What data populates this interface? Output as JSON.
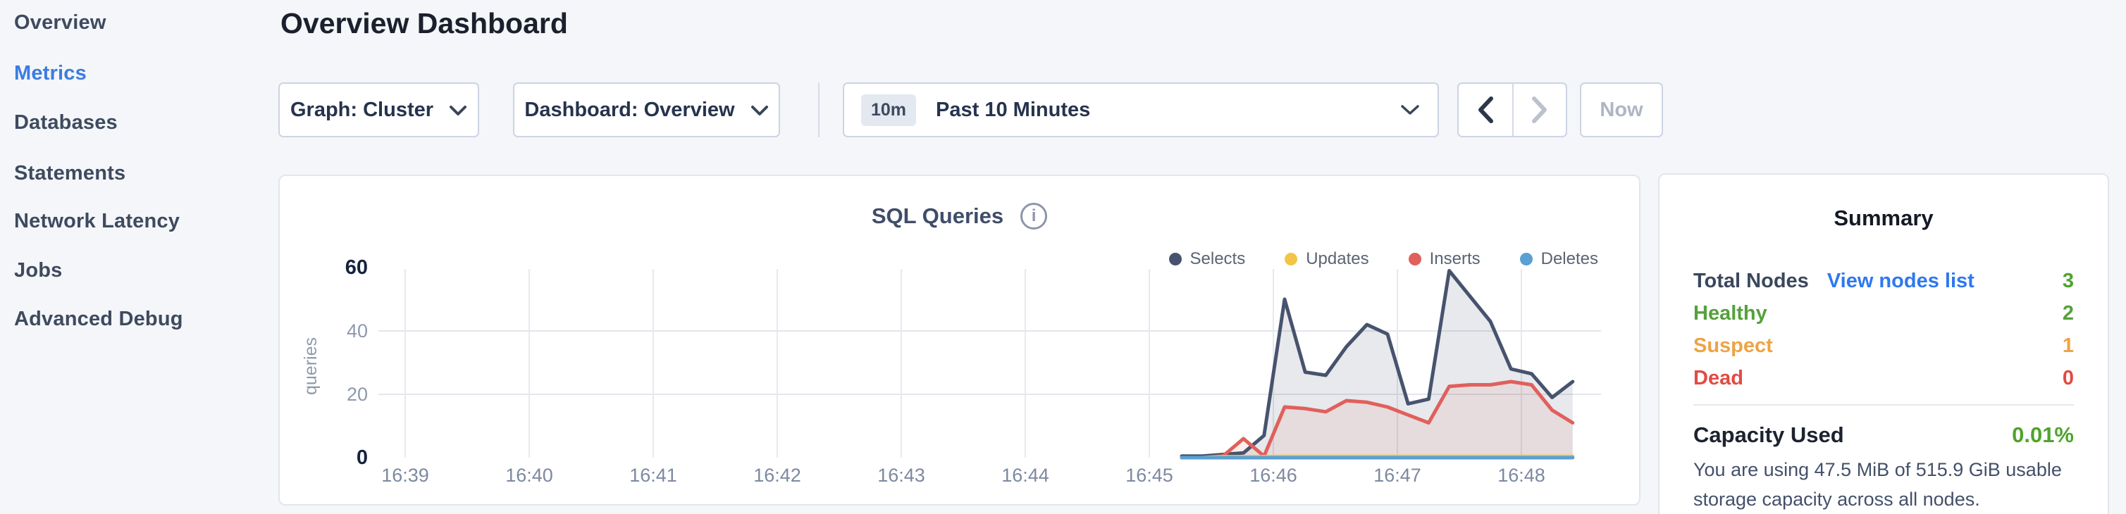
{
  "sidebar": {
    "items": [
      "Overview",
      "Metrics",
      "Databases",
      "Statements",
      "Network Latency",
      "Jobs",
      "Advanced Debug"
    ],
    "active": "Metrics"
  },
  "header": {
    "title": "Overview Dashboard"
  },
  "controls": {
    "graph_selector": "Graph: Cluster",
    "dashboard_selector": "Dashboard: Overview",
    "range_badge": "10m",
    "range_label": "Past 10 Minutes",
    "now_label": "Now"
  },
  "chart_data": {
    "type": "line",
    "title": "SQL Queries",
    "ylabel": "queries",
    "ylim": [
      0,
      60
    ],
    "yticks": [
      0,
      20,
      40,
      60
    ],
    "x_tick_labels": [
      "16:39",
      "16:40",
      "16:41",
      "16:42",
      "16:43",
      "16:44",
      "16:45",
      "16:46",
      "16:47",
      "16:48"
    ],
    "sample_interval_seconds": 10,
    "first_sample_time": "16:45:20",
    "grid": true,
    "legend_position": "top-right",
    "series": [
      {
        "name": "Selects",
        "color": "#47536e",
        "fill": "rgba(71,83,110,0.13)",
        "values": [
          0.5,
          0.5,
          1,
          1.5,
          7,
          50,
          27,
          26,
          35,
          42,
          39,
          17,
          18.5,
          59,
          51,
          43,
          28,
          26.5,
          19,
          24
        ]
      },
      {
        "name": "Updates",
        "color": "#f2c546",
        "fill": "none",
        "values": [
          0,
          0,
          0.3,
          0.3,
          0.3,
          0.4,
          0.4,
          0.4,
          0.4,
          0.4,
          0.4,
          0.4,
          0.4,
          0.4,
          0.4,
          0.4,
          0.4,
          0.4,
          0.4,
          0.4
        ]
      },
      {
        "name": "Inserts",
        "color": "#e0605c",
        "fill": "rgba(224,96,92,0.10)",
        "values": [
          0,
          0,
          0.5,
          6,
          0.5,
          16,
          15.5,
          14.5,
          18,
          17.5,
          16,
          13.5,
          11,
          22.5,
          23,
          23,
          24,
          23,
          15,
          11
        ]
      },
      {
        "name": "Deletes",
        "color": "#59a0d4",
        "fill": "none",
        "values": [
          0,
          0,
          0,
          0,
          0,
          0,
          0,
          0,
          0,
          0,
          0,
          0,
          0,
          0,
          0,
          0,
          0,
          0,
          0,
          0
        ]
      }
    ],
    "legend_order": [
      "Selects",
      "Updates",
      "Inserts",
      "Deletes"
    ]
  },
  "summary": {
    "title": "Summary",
    "rows": [
      {
        "label": "Total Nodes",
        "link": "View nodes list",
        "value": "3",
        "label_color": "#3b475c",
        "value_color": "#4ea42c"
      },
      {
        "label": "Healthy",
        "value": "2",
        "label_color": "#55a13b",
        "value_color": "#55a13b"
      },
      {
        "label": "Suspect",
        "value": "1",
        "label_color": "#eea345",
        "value_color": "#eea345"
      },
      {
        "label": "Dead",
        "value": "0",
        "label_color": "#e14b41",
        "value_color": "#e14b41"
      }
    ],
    "capacity": {
      "label": "Capacity Used",
      "value": "0.01%",
      "value_color": "#4ea42c",
      "description": "You are using 47.5 MiB of 515.9 GiB usable storage capacity across all nodes."
    }
  },
  "colors": {
    "active_nav": "#3b7ce2",
    "link": "#2f78ef",
    "axis_minmax": "#16233f",
    "axis_tick": "#8e99ad",
    "x_tick": "#7d89a0",
    "gridline": "#e7e9ee"
  }
}
